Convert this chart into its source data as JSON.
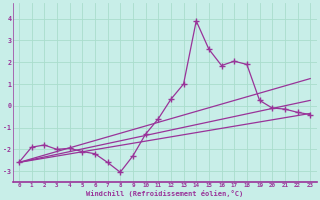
{
  "xlabel": "Windchill (Refroidissement éolien,°C)",
  "xlim": [
    -0.5,
    23.5
  ],
  "ylim": [
    -3.5,
    4.7
  ],
  "xticks": [
    0,
    1,
    2,
    3,
    4,
    5,
    6,
    7,
    8,
    9,
    10,
    11,
    12,
    13,
    14,
    15,
    16,
    17,
    18,
    19,
    20,
    21,
    22,
    23
  ],
  "yticks": [
    -3,
    -2,
    -1,
    0,
    1,
    2,
    3,
    4
  ],
  "background_color": "#c8eee8",
  "grid_color": "#aaddcc",
  "line_color": "#993399",
  "main_x": [
    0,
    1,
    2,
    3,
    4,
    5,
    6,
    7,
    8,
    9,
    10,
    11,
    12,
    13,
    14,
    15,
    16,
    17,
    18,
    19,
    20,
    21,
    22,
    23
  ],
  "main_y": [
    -2.6,
    -1.9,
    -1.8,
    -2.0,
    -1.95,
    -2.1,
    -2.2,
    -2.6,
    -3.05,
    -2.3,
    -1.3,
    -0.6,
    0.3,
    1.0,
    3.9,
    2.6,
    1.85,
    2.05,
    1.9,
    0.25,
    -0.1,
    -0.15,
    -0.3,
    -0.4
  ],
  "trend_lines": [
    {
      "x0": 0,
      "y0": -2.6,
      "x1": 23,
      "y1": -0.35
    },
    {
      "x0": 0,
      "y0": -2.6,
      "x1": 23,
      "y1": 0.25
    },
    {
      "x0": 0,
      "y0": -2.6,
      "x1": 23,
      "y1": 1.25
    }
  ]
}
